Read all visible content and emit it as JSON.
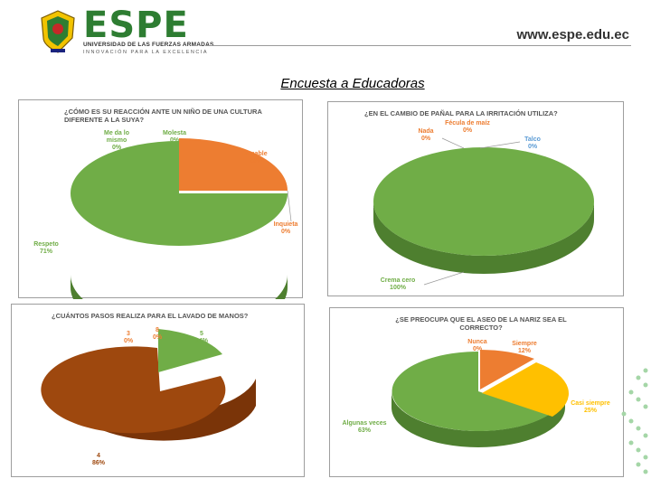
{
  "header": {
    "brand": "ESPE",
    "subtitle": "UNIVERSIDAD DE LAS FUERZAS ARMADAS",
    "tagline": "INNOVACIÓN PARA LA EXCELENCIA",
    "url": "www.espe.edu.ec"
  },
  "page_title": "Encuesta a Educadoras",
  "colors": {
    "brand_green": "#2e7d32",
    "green": "#70ad47",
    "orange": "#ed7d31",
    "brown": "#9e480e",
    "gold": "#ffc000"
  },
  "chart_data": [
    {
      "type": "pie",
      "title": "¿CÓMO ES SU REACCIÓN ANTE UN NIÑO DE UNA CULTURA DIFERENTE A LA SUYA?",
      "slices": [
        {
          "label": "Me da lo mismo",
          "value": 0,
          "display": "0%"
        },
        {
          "label": "Molesta",
          "value": 0,
          "display": "0%"
        },
        {
          "label": "Amable",
          "value": 29,
          "display": "29%",
          "color": "#ed7d31"
        },
        {
          "label": "Inquieta",
          "value": 0,
          "display": "0%"
        },
        {
          "label": "Respeto",
          "value": 71,
          "display": "71%",
          "color": "#70ad47"
        }
      ]
    },
    {
      "type": "pie",
      "title": "¿EN EL CAMBIO DE PAÑAL PARA LA IRRITACIÓN UTILIZA?",
      "slices": [
        {
          "label": "Nada",
          "value": 0,
          "display": "0%"
        },
        {
          "label": "Fécula de maíz",
          "value": 0,
          "display": "0%"
        },
        {
          "label": "Talco",
          "value": 0,
          "display": "0%"
        },
        {
          "label": "Crema cero",
          "value": 100,
          "display": "100%",
          "color": "#70ad47"
        }
      ]
    },
    {
      "type": "pie",
      "title": "¿CUÁNTOS PASOS REALIZA PARA EL LAVADO DE MANOS?",
      "slices": [
        {
          "label": "3",
          "value": 0,
          "display": "0%"
        },
        {
          "label": "8",
          "value": 0,
          "display": "0%"
        },
        {
          "label": "5",
          "value": 14,
          "display": "14%",
          "color": "#70ad47"
        },
        {
          "label": "4",
          "value": 86,
          "display": "86%",
          "color": "#9e480e"
        }
      ]
    },
    {
      "type": "pie",
      "title": "¿SE PREOCUPA QUE EL ASEO DE LA NARIZ SEA EL CORRECTO?",
      "slices": [
        {
          "label": "Nunca",
          "value": 0,
          "display": "0%"
        },
        {
          "label": "Siempre",
          "value": 12,
          "display": "12%",
          "color": "#ed7d31"
        },
        {
          "label": "Casi siempre",
          "value": 25,
          "display": "25%",
          "color": "#ffc000"
        },
        {
          "label": "Algunas veces",
          "value": 63,
          "display": "63%",
          "color": "#70ad47"
        }
      ]
    }
  ]
}
